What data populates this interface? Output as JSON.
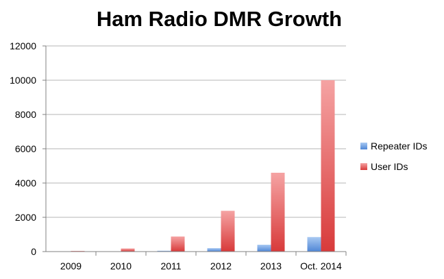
{
  "chart_data": {
    "type": "bar",
    "title": "Ham Radio DMR Growth",
    "categories": [
      "2009",
      "2010",
      "2011",
      "2012",
      "2013",
      "Oct. 2014"
    ],
    "series": [
      {
        "name": "Repeater IDs",
        "values": [
          10,
          20,
          50,
          200,
          400,
          850
        ]
      },
      {
        "name": "User IDs",
        "values": [
          40,
          180,
          880,
          2380,
          4600,
          10000
        ]
      }
    ],
    "ylim": [
      0,
      12000
    ],
    "yticks": [
      0,
      2000,
      4000,
      6000,
      8000,
      10000,
      12000
    ],
    "yticklabels": [
      "0",
      "2000",
      "4000",
      "6000",
      "8000",
      "10000",
      "12000"
    ],
    "grid": true,
    "legend_position": "right",
    "colors": {
      "Repeater IDs": [
        "#a9c9f2",
        "#4f86d6"
      ],
      "User IDs": [
        "#f5a3a3",
        "#d83a3a"
      ]
    }
  }
}
